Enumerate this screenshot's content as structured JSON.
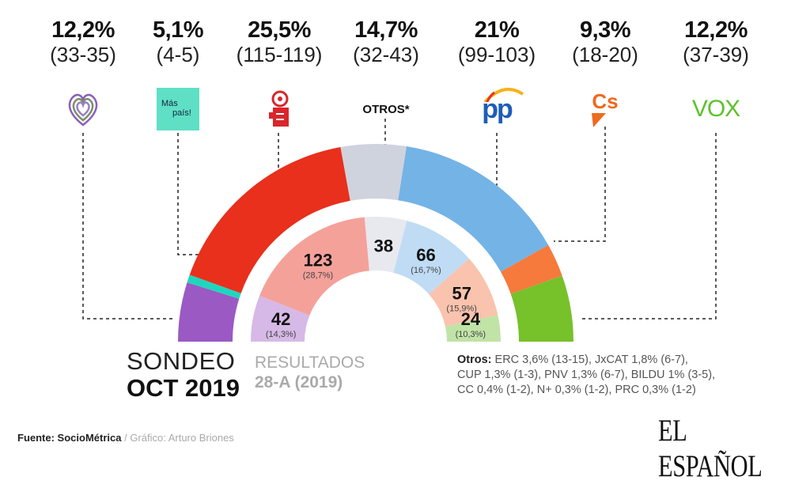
{
  "parties": [
    {
      "id": "podemos",
      "pct": "12,2%",
      "seats": "(33-35)",
      "seat_range": [
        33,
        35
      ],
      "color": "#9b59c4",
      "logo": "heart-logo"
    },
    {
      "id": "mas_pais",
      "pct": "5,1%",
      "seats": "(4-5)",
      "seat_range": [
        4,
        5
      ],
      "color": "#1fd6bd",
      "logo_text": [
        "Más",
        "país!"
      ],
      "logo_color": "#5fe0c4"
    },
    {
      "id": "psoe",
      "pct": "25,5%",
      "seats": "(115-119)",
      "seat_range": [
        115,
        119
      ],
      "color": "#e8301c",
      "logo": "rose-fist-logo"
    },
    {
      "id": "otros",
      "pct": "14,7%",
      "seats": "(32-43)",
      "seat_range": [
        32,
        43
      ],
      "color": "#cfd3de",
      "logo_text": "OTROS*"
    },
    {
      "id": "pp",
      "pct": "21%",
      "seats": "(99-103)",
      "seat_range": [
        99,
        103
      ],
      "color": "#74b3e6",
      "logo_text": "pp",
      "logo_color": "#1e5db8"
    },
    {
      "id": "cs",
      "pct": "9,3%",
      "seats": "(18-20)",
      "seat_range": [
        18,
        20
      ],
      "color": "#f57a3c",
      "logo_text": "Cs",
      "logo_color": "#ee6a1f"
    },
    {
      "id": "vox",
      "pct": "12,2%",
      "seats": "(37-39)",
      "seat_range": [
        37,
        39
      ],
      "color": "#77c12a",
      "logo_text": "VOX",
      "logo_color": "#5dc22a"
    }
  ],
  "chart_data": {
    "type": "hemicycle",
    "outer_ring": {
      "label": [
        "SONDEO",
        "OCT 2019"
      ],
      "categories": [
        "Podemos",
        "Más País",
        "PSOE",
        "Otros",
        "PP",
        "Cs",
        "Vox"
      ],
      "vote_pct": [
        12.2,
        5.1,
        25.5,
        14.7,
        21,
        9.3,
        12.2
      ],
      "seat_ranges": [
        [
          33,
          35
        ],
        [
          4,
          5
        ],
        [
          115,
          119
        ],
        [
          32,
          43
        ],
        [
          99,
          103
        ],
        [
          18,
          20
        ],
        [
          37,
          39
        ]
      ]
    },
    "inner_ring": {
      "label": [
        "RESULTADOS",
        "28-A (2019)"
      ],
      "segments": [
        {
          "party": "Podemos",
          "seats": 42,
          "seats_label": "42",
          "pct_label": "(14,3%)",
          "color": "#d6b9e6"
        },
        {
          "party": "PSOE",
          "seats": 123,
          "seats_label": "123",
          "pct_label": "(28,7%)",
          "color": "#f4a19a"
        },
        {
          "party": "Otros",
          "seats": 38,
          "seats_label": "38",
          "pct_label": "",
          "color": "#e7e9ef"
        },
        {
          "party": "PP",
          "seats": 66,
          "seats_label": "66",
          "pct_label": "(16,7%)",
          "color": "#bfdcf4"
        },
        {
          "party": "Cs",
          "seats": 57,
          "seats_label": "57",
          "pct_label": "(15,9%)",
          "color": "#f9c3ad"
        },
        {
          "party": "Vox",
          "seats": 24,
          "seats_label": "24",
          "pct_label": "(10,3%)",
          "color": "#c1e3a6"
        }
      ]
    }
  },
  "legend": {
    "sondeo": [
      "SONDEO",
      "OCT 2019"
    ],
    "resultados": [
      "RESULTADOS",
      "28-A (2019)"
    ]
  },
  "otros_note": {
    "label": "Otros:",
    "lines": [
      "ERC 3,6% (13-15), JxCAT 1,8% (6-7),",
      "CUP 1,3% (1-3), PNV 1,3% (6-7), BILDU 1% (3-5),",
      "CC 0,4% (1-2), N+ 0,3% (1-2), PRC 0,3% (1-2)"
    ]
  },
  "footer": {
    "source": "Fuente: SocioMétrica",
    "sep": " / ",
    "credit": "Gráfico: Arturo Briones"
  },
  "brand": "EL ESPAÑOL"
}
